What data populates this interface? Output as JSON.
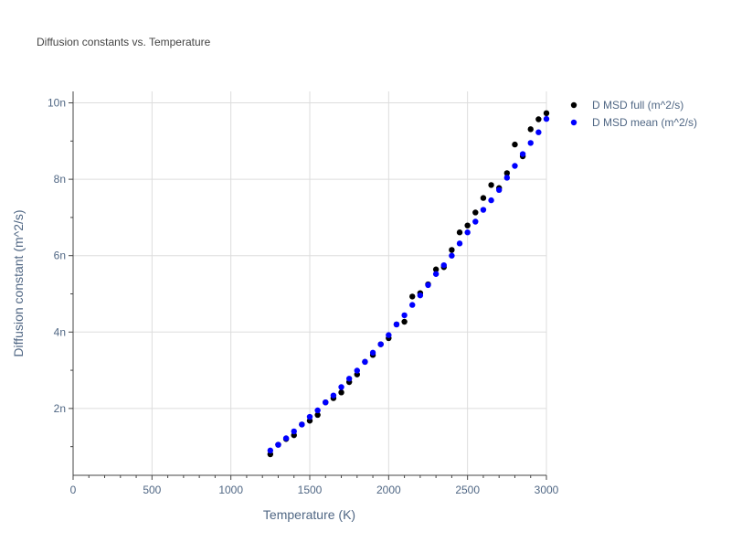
{
  "chart_data": {
    "type": "scatter",
    "title": "Diffusion constants vs. Temperature",
    "xlabel": "Temperature (K)",
    "ylabel": "Diffusion constant (m^2/s)",
    "xlim": [
      0,
      3000
    ],
    "ylim": [
      0.25,
      10.3
    ],
    "x_ticks": [
      0,
      500,
      1000,
      1500,
      2000,
      2500,
      3000
    ],
    "x_tick_labels": [
      "0",
      "500",
      "1000",
      "1500",
      "2000",
      "2500",
      "3000"
    ],
    "y_ticks": [
      2,
      4,
      6,
      8,
      10
    ],
    "y_tick_labels": [
      "2n",
      "4n",
      "6n",
      "8n",
      "10n"
    ],
    "grid": true,
    "legend_position": "top-right",
    "x": [
      1250,
      1300,
      1350,
      1400,
      1450,
      1500,
      1550,
      1600,
      1650,
      1700,
      1750,
      1800,
      1850,
      1900,
      1950,
      2000,
      2050,
      2100,
      2150,
      2200,
      2250,
      2300,
      2350,
      2400,
      2450,
      2500,
      2550,
      2600,
      2650,
      2700,
      2750,
      2800,
      2850,
      2900,
      2950,
      3000
    ],
    "series": [
      {
        "name": "D MSD full (m^2/s)",
        "color": "#000000",
        "values": [
          0.8,
          1.05,
          1.2,
          1.3,
          1.58,
          1.68,
          1.83,
          2.16,
          2.27,
          2.42,
          2.69,
          2.89,
          3.22,
          3.4,
          3.68,
          3.84,
          4.2,
          4.27,
          4.93,
          5.02,
          5.25,
          5.64,
          5.7,
          6.15,
          6.61,
          6.79,
          7.13,
          7.51,
          7.85,
          7.77,
          8.16,
          8.91,
          8.6,
          9.31,
          9.57,
          9.73
        ]
      },
      {
        "name": "D MSD mean (m^2/s)",
        "color": "#0000ff",
        "values": [
          0.9,
          1.05,
          1.22,
          1.4,
          1.58,
          1.78,
          1.95,
          2.16,
          2.34,
          2.56,
          2.78,
          2.99,
          3.22,
          3.46,
          3.68,
          3.92,
          4.2,
          4.44,
          4.71,
          4.96,
          5.23,
          5.52,
          5.75,
          6.0,
          6.32,
          6.61,
          6.89,
          7.2,
          7.45,
          7.72,
          8.04,
          8.35,
          8.66,
          8.95,
          9.23,
          9.58
        ]
      }
    ]
  }
}
